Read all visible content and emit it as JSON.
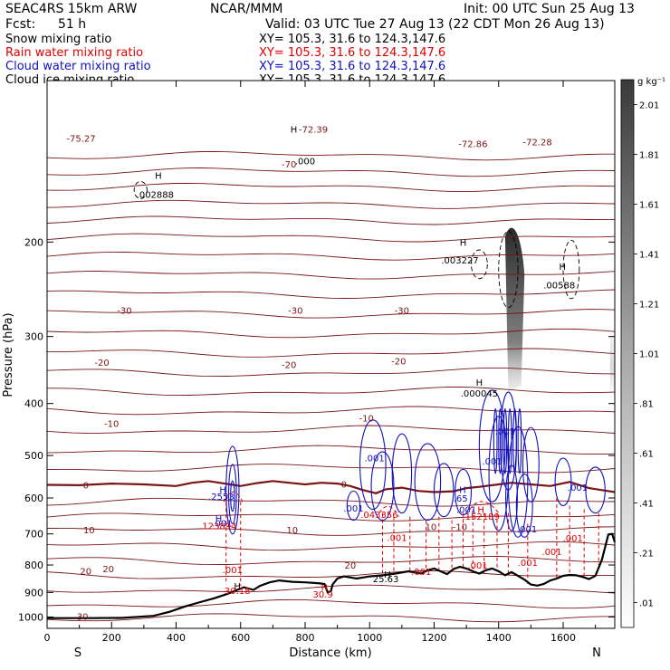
{
  "header": {
    "model": "SEAC4RS 15km ARW",
    "org": "NCAR/MMM",
    "init": "Init: 00 UTC Sun 25 Aug 13",
    "fcst_label": "Fcst:",
    "fcst_value": "51 h",
    "valid": "Valid: 03 UTC Tue 27 Aug 13 (22 CDT Mon 26 Aug 13)"
  },
  "fields": [
    {
      "name": "Snow mixing ratio",
      "xy": "XY= 105.3, 31.6 to 124.3,147.6",
      "color": "#000000"
    },
    {
      "name": "Rain water mixing ratio",
      "xy": "XY= 105.3, 31.6 to 124.3,147.6",
      "color": "#e00000"
    },
    {
      "name": "Cloud water mixing ratio",
      "xy": "XY= 105.3, 31.6 to 124.3,147.6",
      "color": "#1010c0"
    },
    {
      "name": "Cloud ice mixing ratio",
      "xy": "XY= 105.3, 31.6 to 124.3,147.6",
      "color": "#000000"
    }
  ],
  "colors": {
    "temperature": "#7a1414",
    "zero_isotherm": "#7a1414",
    "rain": "#e00000",
    "cloud_water": "#1010c0",
    "terrain": "#000000",
    "ice": "#000000"
  },
  "chart_data": {
    "type": "contour",
    "xlabel": "Distance (km)",
    "ylabel": "Pressure (hPa)",
    "xlim": [
      0,
      1760
    ],
    "ylim": [
      1050,
      100
    ],
    "x_scale": "linear",
    "y_scale": "log",
    "x_ticks": [
      "0",
      "200",
      "400",
      "600",
      "800",
      "1000",
      "1200",
      "1400",
      "1600"
    ],
    "y_ticks": [
      "1000",
      "900",
      "800",
      "700",
      "600",
      "500",
      "400",
      "300",
      "200"
    ],
    "endpoints": {
      "left": "S",
      "right": "N"
    },
    "colorbar": {
      "unit": "g kg⁻¹",
      "ticks": [
        ".01",
        ".21",
        ".41",
        ".61",
        ".81",
        "1.01",
        "1.21",
        "1.41",
        "1.61",
        "1.81",
        "2.01"
      ]
    },
    "terrain": [
      [
        0,
        1005
      ],
      [
        120,
        1005
      ],
      [
        230,
        1004
      ],
      [
        330,
        995
      ],
      [
        380,
        978
      ],
      [
        430,
        955
      ],
      [
        470,
        940
      ],
      [
        520,
        922
      ],
      [
        560,
        905
      ],
      [
        590,
        890
      ],
      [
        610,
        880
      ],
      [
        640,
        890
      ],
      [
        660,
        875
      ],
      [
        690,
        862
      ],
      [
        720,
        855
      ],
      [
        760,
        860
      ],
      [
        800,
        862
      ],
      [
        840,
        865
      ],
      [
        860,
        868
      ],
      [
        870,
        900
      ],
      [
        880,
        895
      ],
      [
        885,
        870
      ],
      [
        900,
        848
      ],
      [
        920,
        840
      ],
      [
        960,
        848
      ],
      [
        1000,
        840
      ],
      [
        1040,
        836
      ],
      [
        1080,
        830
      ],
      [
        1120,
        822
      ],
      [
        1160,
        830
      ],
      [
        1180,
        818
      ],
      [
        1200,
        812
      ],
      [
        1220,
        822
      ],
      [
        1240,
        832
      ],
      [
        1260,
        814
      ],
      [
        1280,
        806
      ],
      [
        1300,
        812
      ],
      [
        1320,
        822
      ],
      [
        1340,
        830
      ],
      [
        1360,
        818
      ],
      [
        1380,
        812
      ],
      [
        1400,
        822
      ],
      [
        1420,
        836
      ],
      [
        1440,
        825
      ],
      [
        1460,
        838
      ],
      [
        1480,
        852
      ],
      [
        1500,
        870
      ],
      [
        1520,
        874
      ],
      [
        1540,
        868
      ],
      [
        1560,
        855
      ],
      [
        1580,
        848
      ],
      [
        1600,
        838
      ],
      [
        1620,
        835
      ],
      [
        1640,
        836
      ],
      [
        1660,
        842
      ],
      [
        1680,
        850
      ],
      [
        1700,
        838
      ],
      [
        1720,
        782
      ],
      [
        1740,
        702
      ],
      [
        1752,
        700
      ],
      [
        1760,
        725
      ]
    ],
    "zero_isotherm": [
      [
        0,
        567
      ],
      [
        100,
        568
      ],
      [
        200,
        564
      ],
      [
        300,
        566
      ],
      [
        400,
        570
      ],
      [
        450,
        562
      ],
      [
        500,
        558
      ],
      [
        550,
        564
      ],
      [
        600,
        570
      ],
      [
        650,
        563
      ],
      [
        700,
        558
      ],
      [
        750,
        562
      ],
      [
        800,
        566
      ],
      [
        850,
        562
      ],
      [
        900,
        564
      ],
      [
        940,
        570
      ],
      [
        980,
        580
      ],
      [
        1020,
        588
      ],
      [
        1050,
        578
      ],
      [
        1100,
        574
      ],
      [
        1150,
        582
      ],
      [
        1200,
        585
      ],
      [
        1260,
        583
      ],
      [
        1300,
        575
      ],
      [
        1340,
        572
      ],
      [
        1400,
        566
      ],
      [
        1440,
        562
      ],
      [
        1500,
        566
      ],
      [
        1560,
        570
      ],
      [
        1620,
        560
      ],
      [
        1680,
        575
      ],
      [
        1720,
        580
      ],
      [
        1760,
        585
      ]
    ],
    "isotherm_labels": [
      {
        "text": "-70",
        "x": 750,
        "p": 143
      },
      {
        "text": "-30",
        "x": 240,
        "p": 268
      },
      {
        "text": "-30",
        "x": 770,
        "p": 268
      },
      {
        "text": "-30",
        "x": 1100,
        "p": 268
      },
      {
        "text": "-20",
        "x": 170,
        "p": 335
      },
      {
        "text": "-20",
        "x": 750,
        "p": 338
      },
      {
        "text": "-20",
        "x": 1090,
        "p": 333
      },
      {
        "text": "-10",
        "x": 200,
        "p": 435
      },
      {
        "text": "-10",
        "x": 990,
        "p": 425
      },
      {
        "text": "0",
        "x": 120,
        "p": 567
      },
      {
        "text": "0",
        "x": 920,
        "p": 565
      },
      {
        "text": "10",
        "x": 130,
        "p": 688
      },
      {
        "text": "10",
        "x": 760,
        "p": 688
      },
      {
        "text": "10",
        "x": 1190,
        "p": 678
      },
      {
        "text": "-10",
        "x": 1280,
        "p": 678
      },
      {
        "text": "20",
        "x": 120,
        "p": 820
      },
      {
        "text": "20",
        "x": 190,
        "p": 812
      },
      {
        "text": "20",
        "x": 940,
        "p": 800
      },
      {
        "text": "30",
        "x": 110,
        "p": 996
      }
    ],
    "top_labels": [
      {
        "text": "-75.27",
        "x": 60,
        "p": 128,
        "color": "#7a1414"
      },
      {
        "text": "-72.39",
        "x": 780,
        "p": 123,
        "color": "#7a1414"
      },
      {
        "text": "-72.86",
        "x": 1275,
        "p": 131,
        "color": "#7a1414"
      },
      {
        "text": "-72.28",
        "x": 1475,
        "p": 130,
        "color": "#7a1414"
      }
    ],
    "annotations": [
      {
        "text": "H",
        "x": 345,
        "p": 150,
        "color": "#000000"
      },
      {
        "text": ".002888",
        "x": 335,
        "p": 163,
        "color": "#000000"
      },
      {
        "text": "H",
        "x": 765,
        "p": 123,
        "color": "#000000"
      },
      {
        "text": ".000",
        "x": 800,
        "p": 141,
        "color": "#000000"
      },
      {
        "text": "H",
        "x": 1290,
        "p": 200,
        "color": "#000000"
      },
      {
        "text": ".003227",
        "x": 1280,
        "p": 216,
        "color": "#000000"
      },
      {
        "text": "H",
        "x": 1598,
        "p": 222,
        "color": "#000000"
      },
      {
        "text": ".00588",
        "x": 1588,
        "p": 240,
        "color": "#000000"
      },
      {
        "text": "H",
        "x": 1340,
        "p": 365,
        "color": "#000000"
      },
      {
        "text": ".000045",
        "x": 1340,
        "p": 382,
        "color": "#000000"
      },
      {
        "text": ".001",
        "x": 1420,
        "p": 450,
        "color": "#1010c0"
      },
      {
        "text": ".001",
        "x": 1015,
        "p": 505,
        "color": "#1010c0"
      },
      {
        "text": ".001",
        "x": 1380,
        "p": 512,
        "color": "#1010c0"
      },
      {
        "text": "H",
        "x": 545,
        "p": 578,
        "color": "#1010c0"
      },
      {
        "text": ".2553",
        "x": 540,
        "p": 595,
        "color": "#1010c0"
      },
      {
        "text": "H",
        "x": 1288,
        "p": 578,
        "color": "#1010c0"
      },
      {
        "text": ".65",
        "x": 1282,
        "p": 600,
        "color": "#1010c0"
      },
      {
        "text": ".001",
        "x": 1645,
        "p": 573,
        "color": "#1010c0"
      },
      {
        "text": ".001",
        "x": 950,
        "p": 626,
        "color": "#1010c0"
      },
      {
        "text": ".001",
        "x": 1300,
        "p": 630,
        "color": "#1010c0"
      },
      {
        "text": ".001",
        "x": 1488,
        "p": 685,
        "color": "#1010c0"
      },
      {
        "text": "H",
        "x": 532,
        "p": 655,
        "color": "#1010c0"
      },
      {
        "text": ".001",
        "x": 543,
        "p": 668,
        "color": "#1010c0"
      },
      {
        "text": ".123894",
        "x": 530,
        "p": 676,
        "color": "#e00000"
      },
      {
        "text": ".043356",
        "x": 1030,
        "p": 644,
        "color": "#e00000"
      },
      {
        "text": "H",
        "x": 1345,
        "p": 630,
        "color": "#e00000"
      },
      {
        "text": ".152189",
        "x": 1345,
        "p": 648,
        "color": "#e00000"
      },
      {
        "text": ".001",
        "x": 1085,
        "p": 710,
        "color": "#e00000"
      },
      {
        "text": ".001",
        "x": 1630,
        "p": 712,
        "color": "#e00000"
      },
      {
        "text": ".001",
        "x": 1565,
        "p": 755,
        "color": "#e00000"
      },
      {
        "text": ".001",
        "x": 1490,
        "p": 790,
        "color": "#e00000"
      },
      {
        "text": ".001",
        "x": 1335,
        "p": 800,
        "color": "#e00000"
      },
      {
        "text": ".001",
        "x": 1160,
        "p": 822,
        "color": "#e00000"
      },
      {
        "text": ".001",
        "x": 575,
        "p": 815,
        "color": "#e00000"
      },
      {
        "text": "H",
        "x": 1055,
        "p": 832,
        "color": "#000000"
      },
      {
        "text": "25.63",
        "x": 1050,
        "p": 848,
        "color": "#000000"
      },
      {
        "text": "H",
        "x": 590,
        "p": 875,
        "color": "#000000"
      },
      {
        "text": "30.18",
        "x": 590,
        "p": 892,
        "color": "#e00000"
      },
      {
        "text": "H",
        "x": 860,
        "p": 880,
        "color": "#e00000"
      },
      {
        "text": "30.9",
        "x": 855,
        "p": 905,
        "color": "#e00000"
      }
    ]
  }
}
